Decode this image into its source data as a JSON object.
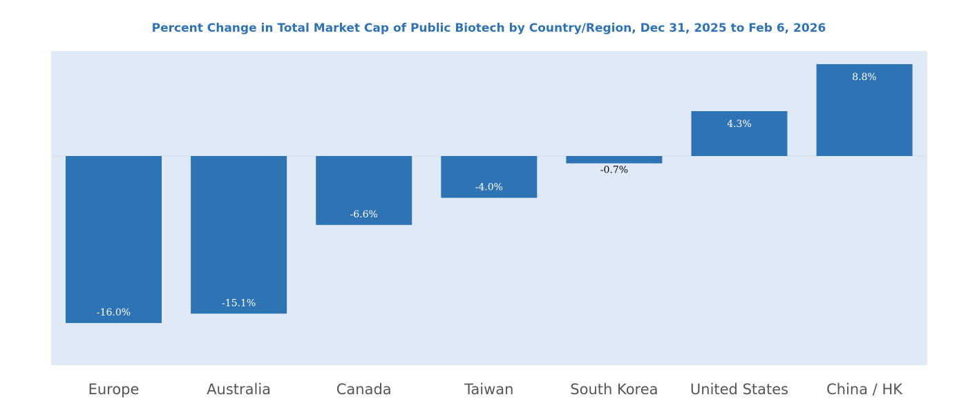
{
  "chart_data": {
    "type": "bar",
    "title": "Percent Change in Total Market Cap of Public Biotech by Country/Region, Dec 31, 2025 to Feb 6, 2026",
    "xlabel": "",
    "ylabel": "",
    "categories": [
      "Europe",
      "Australia",
      "Canada",
      "Taiwan",
      "South Korea",
      "United States",
      "China / HK"
    ],
    "values": [
      -16.0,
      -15.1,
      -6.6,
      -4.0,
      -0.7,
      4.3,
      8.8
    ],
    "data_labels": [
      "-16.0%",
      "-15.1%",
      "-6.6%",
      "-4.0%",
      "-0.7%",
      "4.3%",
      "8.8%"
    ],
    "ylim": [
      -20,
      10
    ],
    "grid": false,
    "colors": {
      "bar": "#2e74b5",
      "plot_background": "#dfeaf6",
      "title": "#2f73b6",
      "label_inside": "#ffffff",
      "label_outside": "#000000",
      "category_text": "#555555"
    }
  }
}
